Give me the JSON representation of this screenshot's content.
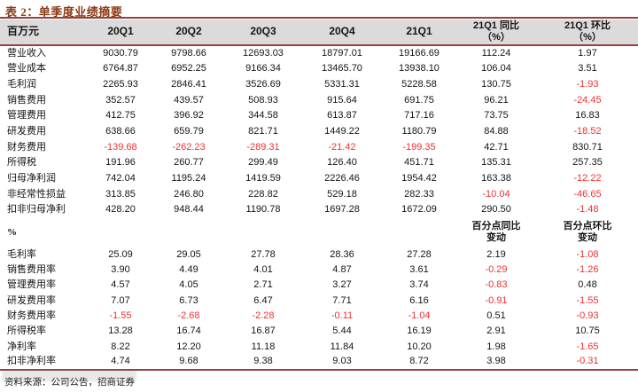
{
  "title": "表 2：单季度业绩摘要",
  "colors": {
    "accent_rule": "#904345",
    "title_text": "#8c3a15",
    "negative_value": "#f03030",
    "header_background": "#dbdbdb"
  },
  "table": {
    "unit_header": "百万元",
    "quarter_headers": [
      "20Q1",
      "20Q2",
      "20Q3",
      "20Q4",
      "21Q1"
    ],
    "yoy_header": {
      "line1": "21Q1 同比",
      "line2": "（%）"
    },
    "qoq_header": {
      "line1": "21Q1 环比",
      "line2": "（%）"
    },
    "sections": [
      {
        "name": "absolute-values-millions",
        "rows": [
          {
            "label": "营业收入",
            "values": [
              "9030.79",
              "9798.66",
              "12693.03",
              "18797.01",
              "19166.69",
              "112.24",
              "1.97"
            ]
          },
          {
            "label": "营业成本",
            "values": [
              "6764.87",
              "6952.25",
              "9166.34",
              "13465.70",
              "13938.10",
              "106.04",
              "3.51"
            ]
          },
          {
            "label": "毛利润",
            "values": [
              "2265.93",
              "2846.41",
              "3526.69",
              "5331.31",
              "5228.58",
              "130.75",
              "-1.93"
            ]
          },
          {
            "label": "销售费用",
            "values": [
              "352.57",
              "439.57",
              "508.93",
              "915.64",
              "691.75",
              "96.21",
              "-24.45"
            ]
          },
          {
            "label": "管理费用",
            "values": [
              "412.75",
              "396.92",
              "344.58",
              "613.87",
              "717.16",
              "73.75",
              "16.83"
            ]
          },
          {
            "label": "研发费用",
            "values": [
              "638.66",
              "659.79",
              "821.71",
              "1449.22",
              "1180.79",
              "84.88",
              "-18.52"
            ]
          },
          {
            "label": "财务费用",
            "values": [
              "-139.68",
              "-262.23",
              "-289.31",
              "-21.42",
              "-199.35",
              "42.71",
              "830.71"
            ]
          },
          {
            "label": "所得税",
            "values": [
              "191.96",
              "260.77",
              "299.49",
              "126.40",
              "451.71",
              "135.31",
              "257.35"
            ]
          },
          {
            "label": "归母净利润",
            "values": [
              "742.04",
              "1195.24",
              "1419.59",
              "2226.46",
              "1954.42",
              "163.38",
              "-12.22"
            ]
          },
          {
            "label": "非经常性损益",
            "values": [
              "313.85",
              "246.80",
              "228.82",
              "529.18",
              "282.33",
              "-10.04",
              "-46.65"
            ]
          },
          {
            "label": "扣非归母净利",
            "values": [
              "428.20",
              "948.44",
              "1190.78",
              "1697.28",
              "1672.09",
              "290.50",
              "-1.48"
            ]
          }
        ]
      },
      {
        "name": "percent-ratios",
        "section_label": "%",
        "yoy_subheader": {
          "line1": "百分点同比",
          "line2": "变动"
        },
        "qoq_subheader": {
          "line1": "百分点环比",
          "line2": "变动"
        },
        "rows": [
          {
            "label": "毛利率",
            "values": [
              "25.09",
              "29.05",
              "27.78",
              "28.36",
              "27.28",
              "2.19",
              "-1.08"
            ]
          },
          {
            "label": "销售费用率",
            "values": [
              "3.90",
              "4.49",
              "4.01",
              "4.87",
              "3.61",
              "-0.29",
              "-1.26"
            ]
          },
          {
            "label": "管理费用率",
            "values": [
              "4.57",
              "4.05",
              "2.71",
              "3.27",
              "3.74",
              "-0.83",
              "0.48"
            ]
          },
          {
            "label": "研发费用率",
            "values": [
              "7.07",
              "6.73",
              "6.47",
              "7.71",
              "6.16",
              "-0.91",
              "-1.55"
            ]
          },
          {
            "label": "财务费用率",
            "values": [
              "-1.55",
              "-2.68",
              "-2.28",
              "-0.11",
              "-1.04",
              "0.51",
              "-0.93"
            ]
          },
          {
            "label": "所得税率",
            "values": [
              "13.28",
              "16.74",
              "16.87",
              "5.44",
              "16.19",
              "2.91",
              "10.75"
            ]
          },
          {
            "label": "净利率",
            "values": [
              "8.22",
              "12.20",
              "11.18",
              "11.84",
              "10.20",
              "1.98",
              "-1.65"
            ]
          },
          {
            "label": "扣非净利率",
            "values": [
              "4.74",
              "9.68",
              "9.38",
              "9.03",
              "8.72",
              "3.98",
              "-0.31"
            ]
          }
        ]
      }
    ]
  },
  "footer": {
    "text": "资料来源：公司公告，招商证券"
  }
}
